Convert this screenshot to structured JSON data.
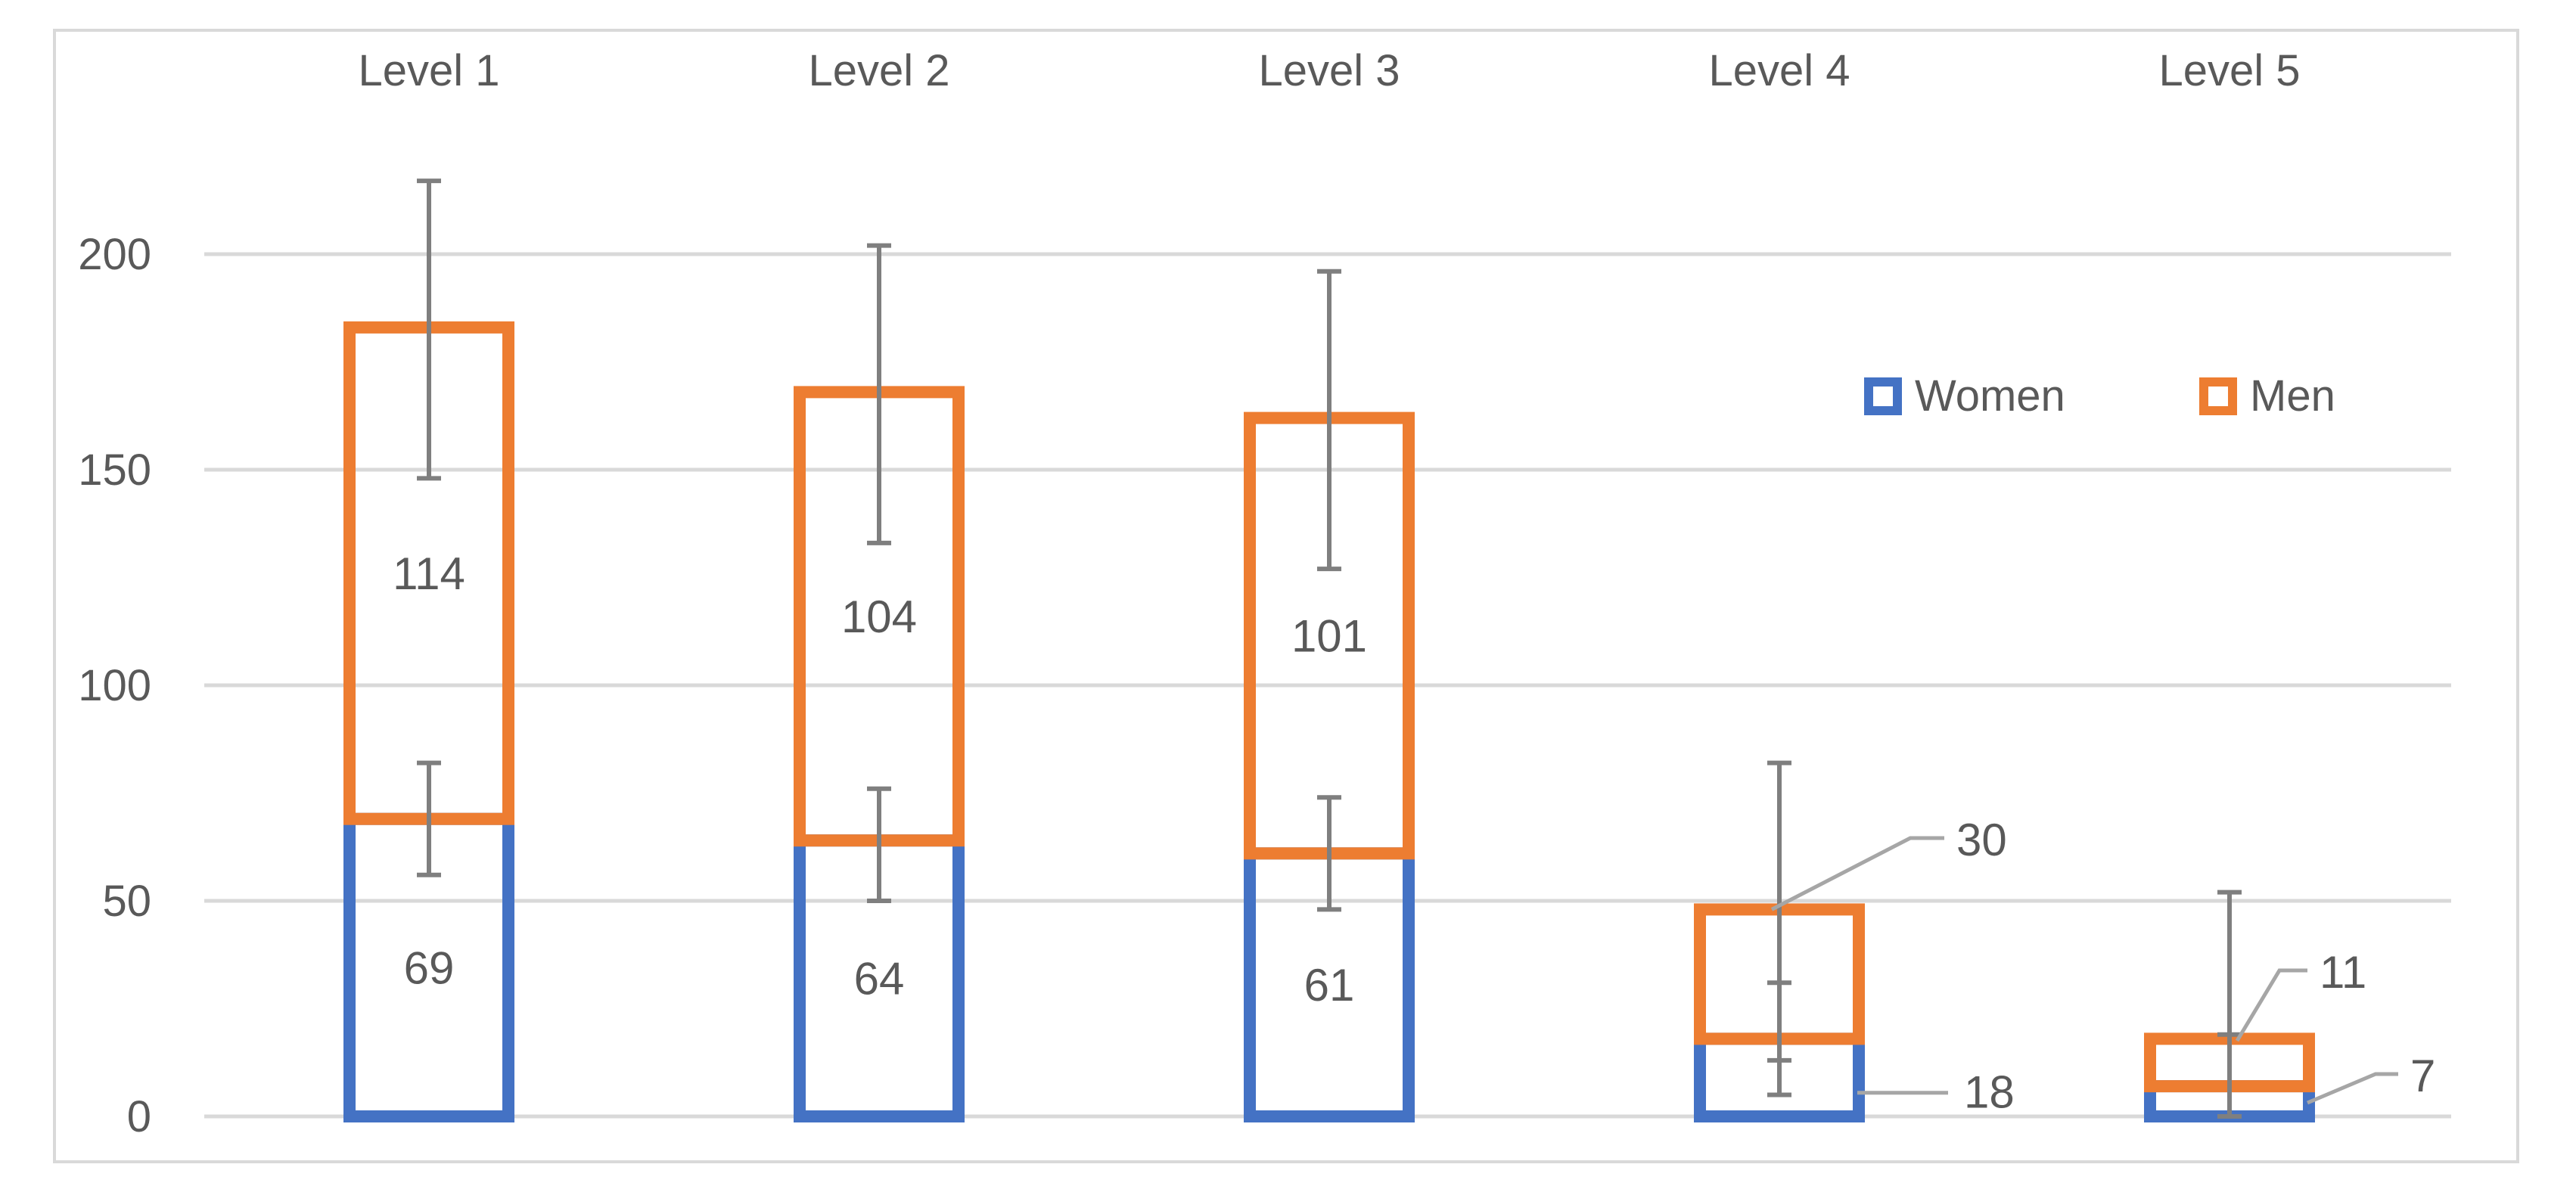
{
  "chart_data": {
    "type": "bar",
    "stacked": true,
    "categories": [
      "Level 1",
      "Level 2",
      "Level 3",
      "Level 4",
      "Level 5"
    ],
    "series": [
      {
        "name": "Women",
        "values": [
          69,
          64,
          61,
          18,
          7
        ],
        "error_bars": [
          {
            "low": 56,
            "high": 82
          },
          {
            "low": 50,
            "high": 76
          },
          {
            "low": 48,
            "high": 74
          },
          {
            "low": 5,
            "high": 31
          },
          {
            "low": 0,
            "high": 19
          }
        ]
      },
      {
        "name": "Men",
        "values": [
          114,
          104,
          101,
          30,
          11
        ],
        "error_bars": [
          {
            "low": 148,
            "high": 217
          },
          {
            "low": 133,
            "high": 202
          },
          {
            "low": 127,
            "high": 196
          },
          {
            "low": 13,
            "high": 82
          },
          {
            "low": 0,
            "high": 52
          }
        ]
      }
    ],
    "value_labels": {
      "Women": [
        "69",
        "64",
        "61",
        "18",
        "7"
      ],
      "Men": [
        "114",
        "104",
        "101",
        "30",
        "11"
      ]
    },
    "ylim": [
      0,
      200
    ],
    "yticks": [
      0,
      50,
      100,
      150,
      200
    ],
    "grid": true,
    "legend_position": "right",
    "category_labels_position": "top",
    "title": "",
    "xlabel": "",
    "ylabel": "",
    "colors": {
      "Women": "#4472c4",
      "Men": "#ed7d31",
      "error_bar": "#7f7f7f",
      "grid": "#d9d9d9",
      "text": "#595959",
      "leader": "#a6a6a6"
    }
  }
}
